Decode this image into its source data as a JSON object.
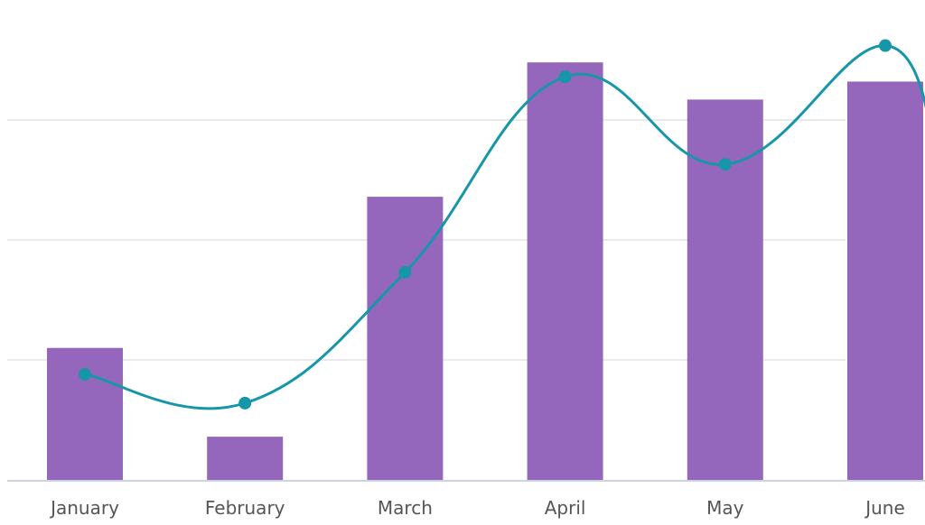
{
  "chart_data": {
    "type": "bar",
    "categories": [
      "January",
      "February",
      "March",
      "April",
      "May",
      "June"
    ],
    "series": [
      {
        "type": "bar",
        "values": [
          11,
          3.6,
          23.6,
          34.8,
          31.7,
          33.2
        ]
      },
      {
        "type": "line",
        "smooth": true,
        "values": [
          8.8,
          6.4,
          17.3,
          33.6,
          26.3,
          36.2
        ]
      }
    ],
    "ylim": [
      0,
      40
    ],
    "y_gridlines": [
      0,
      10,
      20,
      30
    ],
    "grid": true,
    "colors": {
      "bar": "#9467bd",
      "line": "#1696a8",
      "grid": "#e3e3e3",
      "axis": "#cdd3de",
      "tick_label": "#555555"
    }
  }
}
